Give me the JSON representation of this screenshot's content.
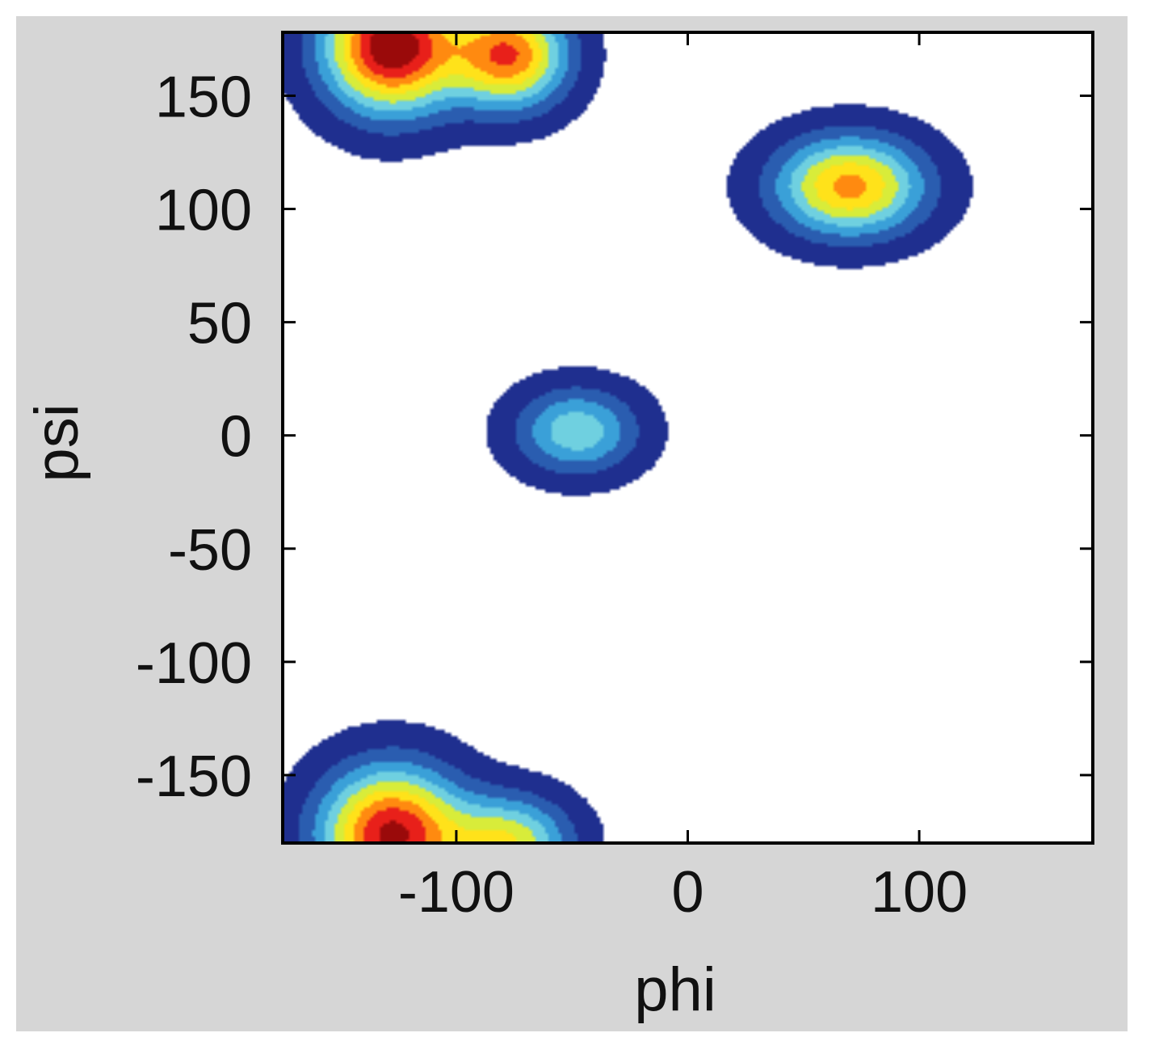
{
  "chart_data": {
    "type": "heatmap",
    "title": "",
    "xlabel": "phi",
    "ylabel": "psi",
    "xlim": [
      -175,
      175
    ],
    "ylim": [
      -180,
      178
    ],
    "x_ticks": [
      -100,
      0,
      100
    ],
    "y_ticks": [
      150,
      100,
      50,
      0,
      -50,
      -100,
      -150
    ],
    "x_tick_labels": [
      "-100",
      "0",
      "100"
    ],
    "y_tick_labels": [
      "150",
      "100",
      "50",
      "0",
      "-50",
      "-100",
      "-150"
    ],
    "grid": false,
    "legend": "none",
    "colormap": [
      "#ffffff",
      "#1f2f8f",
      "#2a5db0",
      "#3aa0d8",
      "#6fd0e0",
      "#d8ec3a",
      "#ffe21a",
      "#ff8a10",
      "#e8201a",
      "#9a0a0a"
    ],
    "density_peaks": [
      {
        "phi": -128,
        "psi": 172,
        "sigma_phi": 20,
        "sigma_psi": 20,
        "intensity": 1.0
      },
      {
        "phi": -77,
        "psi": 168,
        "sigma_phi": 17,
        "sigma_psi": 16,
        "intensity": 0.78
      },
      {
        "phi": -128,
        "psi": -176,
        "sigma_phi": 21,
        "sigma_psi": 20,
        "intensity": 0.92
      },
      {
        "phi": -77,
        "psi": -180,
        "sigma_phi": 18,
        "sigma_psi": 14,
        "intensity": 0.55
      },
      {
        "phi": 70,
        "psi": 110,
        "sigma_phi": 22,
        "sigma_psi": 15,
        "intensity": 0.72
      },
      {
        "phi": -48,
        "psi": 2,
        "sigma_phi": 18,
        "sigma_psi": 13,
        "intensity": 0.44
      }
    ]
  }
}
